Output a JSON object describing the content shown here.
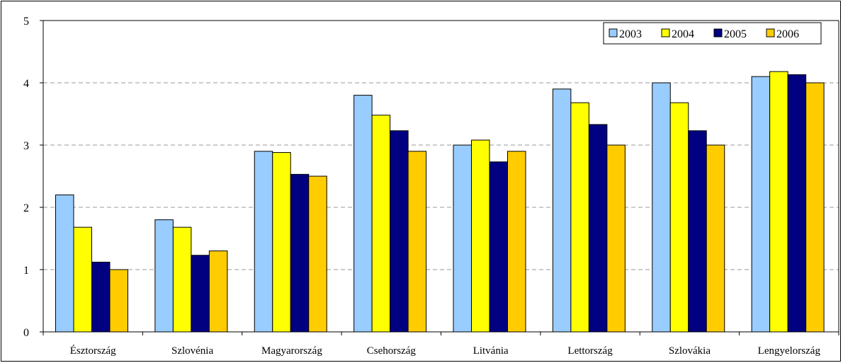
{
  "chart_data": {
    "type": "bar",
    "categories": [
      "Észtország",
      "Szlovénia",
      "Magyarország",
      "Csehország",
      "Litvánia",
      "Lettország",
      "Szlovákia",
      "Lengyelország"
    ],
    "series": [
      {
        "name": "2003",
        "color": "#99ccff",
        "values": [
          2.2,
          1.8,
          2.9,
          3.8,
          3.0,
          3.9,
          4.0,
          4.1
        ]
      },
      {
        "name": "2004",
        "color": "#ffff00",
        "values": [
          1.68,
          1.68,
          2.88,
          3.48,
          3.08,
          3.68,
          3.68,
          4.18
        ]
      },
      {
        "name": "2005",
        "color": "#000080",
        "values": [
          1.12,
          1.23,
          2.53,
          3.23,
          2.73,
          3.33,
          3.23,
          4.13
        ]
      },
      {
        "name": "2006",
        "color": "#ffcc00",
        "values": [
          1.0,
          1.3,
          2.5,
          2.9,
          2.9,
          3.0,
          3.0,
          4.0
        ]
      }
    ],
    "yticks": [
      0,
      1,
      2,
      3,
      4,
      5
    ],
    "ylim": [
      0,
      5
    ],
    "grid": "horizontal dashed",
    "legend_position": "top-right"
  }
}
